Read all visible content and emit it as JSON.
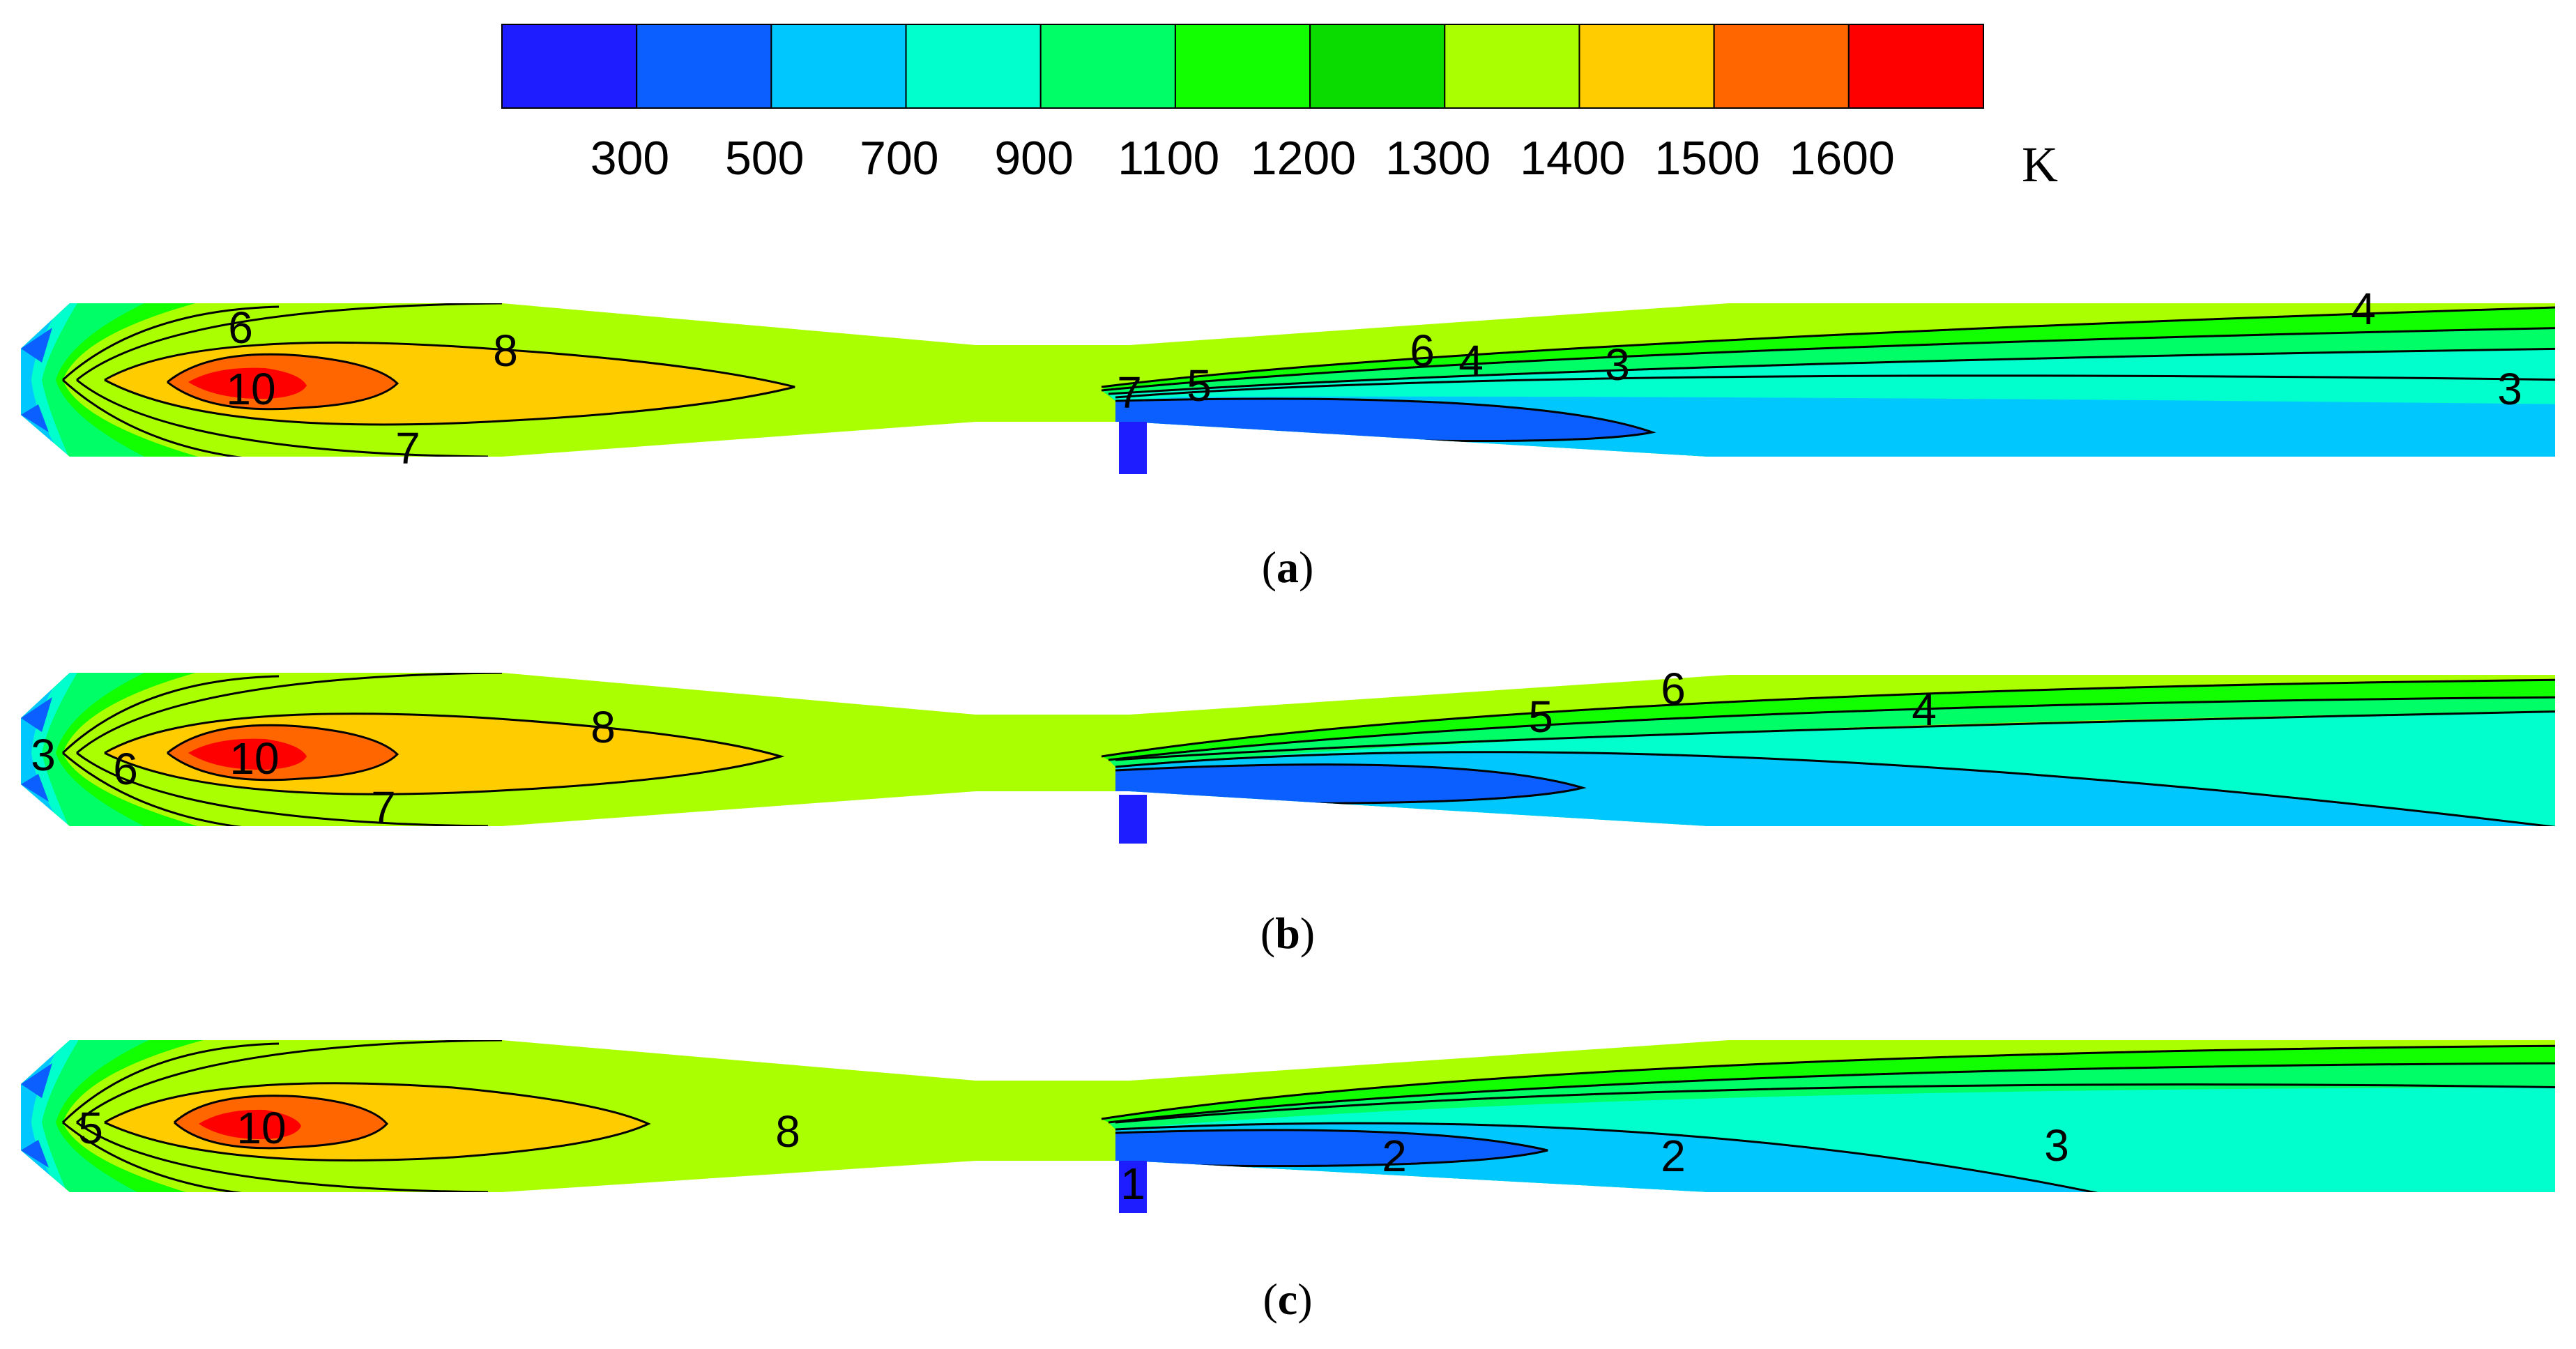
{
  "chart_data": {
    "type": "heatmap",
    "colorbar": {
      "unit": "K",
      "ticks": [
        "300",
        "500",
        "700",
        "900",
        "1100",
        "1200",
        "1300",
        "1400",
        "1500",
        "1600"
      ],
      "colors": [
        "#1d1dff",
        "#0b5fff",
        "#00c8ff",
        "#00ffcc",
        "#00ff66",
        "#11ff00",
        "#0bdc00",
        "#aaff00",
        "#ffcc00",
        "#ff6600",
        "#ff0000"
      ]
    },
    "panels": [
      {
        "caption_letter": "a",
        "labels": [
          "6",
          "10",
          "8",
          "7",
          "7",
          "5",
          "6",
          "4",
          "3",
          "4",
          "3"
        ]
      },
      {
        "caption_letter": "b",
        "labels": [
          "3",
          "6",
          "10",
          "8",
          "7",
          "5",
          "6",
          "4"
        ]
      },
      {
        "caption_letter": "c",
        "labels": [
          "5",
          "10",
          "8",
          "1",
          "2",
          "2",
          "3"
        ]
      }
    ]
  }
}
